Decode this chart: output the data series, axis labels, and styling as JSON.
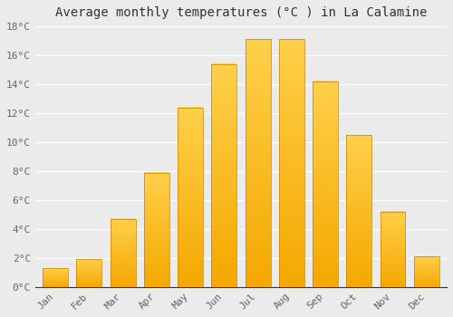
{
  "title": "Average monthly temperatures (°C ) in La Calamine",
  "months": [
    "Jan",
    "Feb",
    "Mar",
    "Apr",
    "May",
    "Jun",
    "Jul",
    "Aug",
    "Sep",
    "Oct",
    "Nov",
    "Dec"
  ],
  "temperatures": [
    1.3,
    1.9,
    4.7,
    7.9,
    12.4,
    15.4,
    17.1,
    17.1,
    14.2,
    10.5,
    5.2,
    2.1
  ],
  "bar_color_top": "#FFD04A",
  "bar_color_bottom": "#F5A800",
  "bar_edge_color": "#C88000",
  "ylim": [
    0,
    18
  ],
  "yticks": [
    0,
    2,
    4,
    6,
    8,
    10,
    12,
    14,
    16,
    18
  ],
  "ytick_labels": [
    "0°C",
    "2°C",
    "4°C",
    "6°C",
    "8°C",
    "10°C",
    "12°C",
    "14°C",
    "16°C",
    "18°C"
  ],
  "background_color": "#ebebeb",
  "grid_color": "#ffffff",
  "title_fontsize": 10,
  "tick_fontsize": 8,
  "tick_color": "#666666",
  "title_color": "#333333",
  "bar_width": 0.75
}
